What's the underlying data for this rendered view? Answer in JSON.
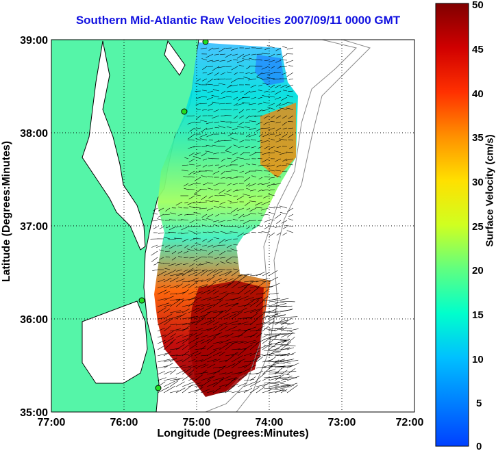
{
  "title": "Southern Mid-Atlantic Raw Velocities 2007/09/11 0000 GMT",
  "xlabel": "Longitude (Degrees:Minutes)",
  "ylabel": "Latitude (Degrees:Minutes)",
  "x_ticks": [
    "77:00",
    "76:00",
    "75:00",
    "74:00",
    "73:00",
    "72:00"
  ],
  "y_ticks": [
    "39:00",
    "38:00",
    "37:00",
    "36:00",
    "35:00"
  ],
  "colorbar": {
    "label": "Surface Velocity (cm/s)",
    "ticks": [
      "50",
      "45",
      "40",
      "35",
      "30",
      "25",
      "20",
      "15",
      "10",
      "5",
      "0"
    ],
    "range": [
      0,
      50
    ],
    "colors": [
      "#0000ff",
      "#00ffff",
      "#ffff00",
      "#ff0000",
      "#800000"
    ]
  },
  "colors": {
    "land": "#55f5a8",
    "coastline": "#000000",
    "isobath": "#888888",
    "station": "#22dd22",
    "arrows": "#000000"
  }
}
